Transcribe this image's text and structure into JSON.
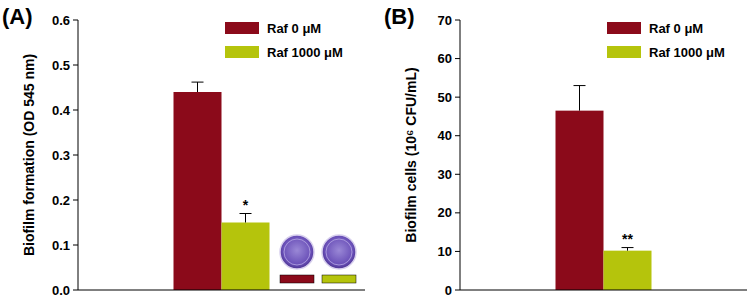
{
  "chart_data": [
    {
      "type": "bar",
      "title": "(A)",
      "y_label": "Biofilm formation (OD 545 nm)",
      "categories": [
        null
      ],
      "series": [
        {
          "name": "Raf 0 μM",
          "color": "#8b0a1a",
          "values": [
            0.44
          ],
          "errors": [
            0.022
          ]
        },
        {
          "name": "Raf 1000 μM",
          "color": "#b5c40c",
          "values": [
            0.15
          ],
          "errors": [
            0.02
          ],
          "annotations": [
            "*"
          ]
        }
      ],
      "ylim": [
        0,
        0.6
      ],
      "yticks": [
        {
          "value": 0,
          "label": "0.0"
        },
        0.1,
        0.2,
        0.3,
        0.4,
        0.5,
        0.6
      ],
      "legend": "top-right",
      "grid": false,
      "tick_labels": "y"
    },
    {
      "type": "bar",
      "title": "(B)",
      "y_label": "Biofilm cells (10⁶ CFU/mL)",
      "categories": [
        null
      ],
      "series": [
        {
          "name": "Raf 0 μM",
          "color": "#8b0a1a",
          "values": [
            46.5
          ],
          "errors": [
            6.5
          ]
        },
        {
          "name": "Raf 1000 μM",
          "color": "#b5c40c",
          "values": [
            10.2
          ],
          "errors": [
            0.8
          ],
          "annotations": [
            "**"
          ]
        }
      ],
      "ylim": [
        0,
        70
      ],
      "yticks": [
        0,
        10,
        20,
        30,
        40,
        50,
        60,
        70
      ],
      "legend": "top-right",
      "grid": false,
      "tick_labels": "y"
    }
  ]
}
